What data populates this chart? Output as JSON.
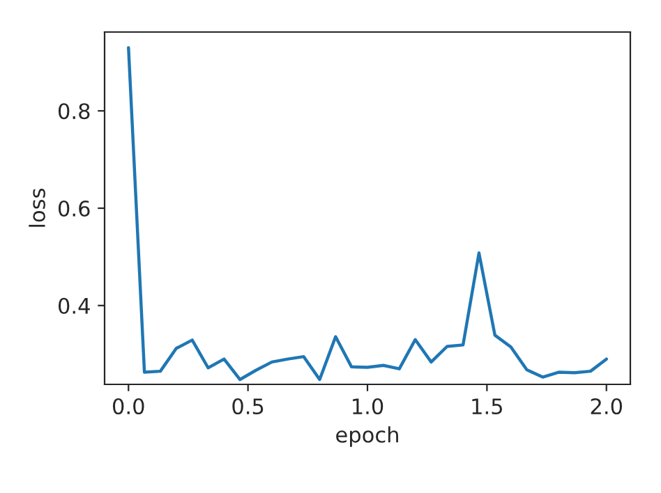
{
  "chart_data": {
    "type": "line",
    "xlabel": "epoch",
    "ylabel": "loss",
    "x": [
      0,
      0.0667,
      0.1333,
      0.2,
      0.2667,
      0.3333,
      0.4,
      0.4667,
      0.5333,
      0.6,
      0.6667,
      0.7333,
      0.8,
      0.8667,
      0.9333,
      1.0,
      1.0667,
      1.1333,
      1.2,
      1.2667,
      1.3333,
      1.4,
      1.4667,
      1.5333,
      1.6,
      1.6667,
      1.7333,
      1.8,
      1.8667,
      1.9333,
      2.0
    ],
    "series": [
      {
        "color": "#1f77b4",
        "values": [
          0.93,
          0.263,
          0.265,
          0.312,
          0.329,
          0.272,
          0.29,
          0.248,
          0.267,
          0.284,
          0.29,
          0.295,
          0.248,
          0.336,
          0.274,
          0.273,
          0.277,
          0.27,
          0.33,
          0.284,
          0.316,
          0.319,
          0.508,
          0.339,
          0.315,
          0.268,
          0.253,
          0.263,
          0.262,
          0.265,
          0.29
        ]
      }
    ],
    "xlim": [
      -0.1,
      2.1
    ],
    "ylim": [
      0.238,
      0.962
    ],
    "xticks": [
      {
        "value": 0,
        "label": "0.0"
      },
      0.5,
      {
        "value": 1,
        "label": "1.0"
      },
      1.5,
      {
        "value": 2,
        "label": "2.0"
      }
    ],
    "yticks": [
      0.4,
      0.6,
      0.8
    ],
    "grid": false,
    "legend": false
  }
}
